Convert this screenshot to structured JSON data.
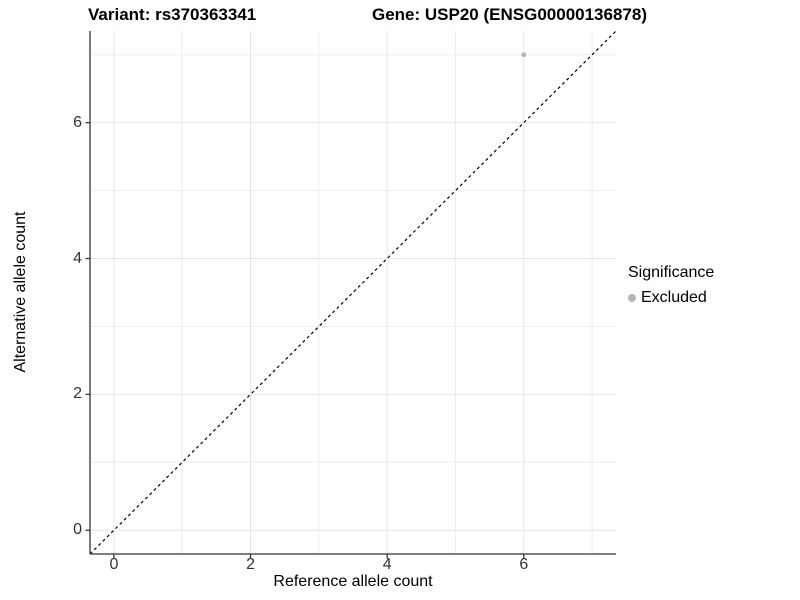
{
  "chart_data": {
    "type": "scatter",
    "variant_title": "Variant: rs370363341",
    "gene_title": "Gene: USP20 (ENSG00000136878)",
    "xlabel": "Reference allele count",
    "ylabel": "Alternative allele count",
    "xlim": [
      -0.35,
      7.35
    ],
    "ylim": [
      -0.35,
      7.35
    ],
    "x_ticks": [
      0,
      2,
      4,
      6
    ],
    "y_ticks": [
      0,
      2,
      4,
      6
    ],
    "x_minor_ticks": [
      1,
      3,
      5,
      7
    ],
    "y_minor_ticks": [
      1,
      3,
      5,
      7
    ],
    "grid": true,
    "points": [
      {
        "x": 6,
        "y": 7,
        "significance": "Excluded"
      }
    ],
    "reference_line": {
      "kind": "identity",
      "intercept": 0,
      "slope": 1,
      "style": "dashed"
    },
    "legend": {
      "title": "Significance",
      "position": "right",
      "items": [
        {
          "label": "Excluded",
          "color": "#b5b5b5"
        }
      ]
    }
  },
  "colors": {
    "background": "#ffffff",
    "point": "#b5b5b5",
    "grid_major": "#e4e4e4",
    "grid_minor": "#eeeeee",
    "axis_line": "#333333",
    "tick_label": "#333333",
    "title_text": "#000000",
    "reference_line": "#000000"
  }
}
